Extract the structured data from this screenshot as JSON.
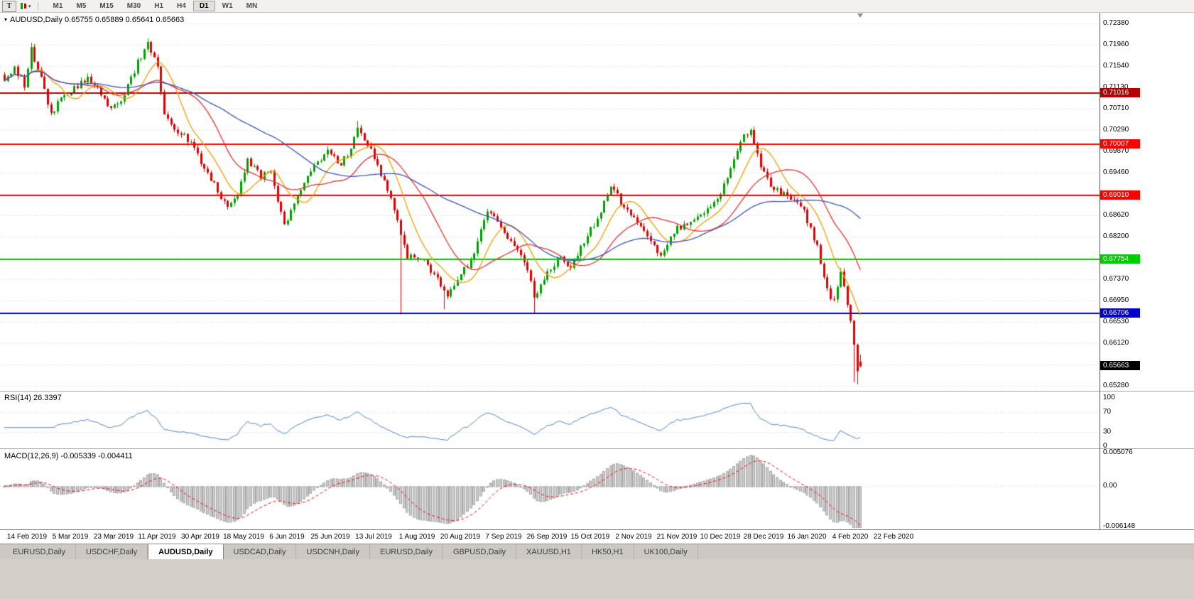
{
  "toolbar": {
    "template_button_glyph": "T",
    "dropdown_caret": "▾",
    "timeframes": [
      {
        "label": "M1",
        "active": false
      },
      {
        "label": "M5",
        "active": false
      },
      {
        "label": "M15",
        "active": false
      },
      {
        "label": "M30",
        "active": false
      },
      {
        "label": "H1",
        "active": false
      },
      {
        "label": "H4",
        "active": false
      },
      {
        "label": "D1",
        "active": true
      },
      {
        "label": "W1",
        "active": false
      },
      {
        "label": "MN",
        "active": false
      }
    ]
  },
  "chart": {
    "collapse_marker": "▾",
    "title": "AUDUSD,Daily 0.65755 0.65889 0.65641 0.65663",
    "price_axis": [
      "0.72380",
      "0.71960",
      "0.71540",
      "0.71130",
      "0.70710",
      "0.70290",
      "0.69870",
      "0.69460",
      "0.69040",
      "0.68620",
      "0.68200",
      "0.67790",
      "0.67370",
      "0.66950",
      "0.66530",
      "0.66120",
      "0.65700",
      "0.65280"
    ],
    "hlines": [
      {
        "label": "0.71016",
        "value": 0.71016,
        "color": "#b30000"
      },
      {
        "label": "0.70007",
        "value": 0.70007,
        "color": "#ff0000"
      },
      {
        "label": "0.69010",
        "value": 0.6901,
        "color": "#ff0000"
      },
      {
        "label": "0.67754",
        "value": 0.67754,
        "color": "#00cc00"
      },
      {
        "label": "0.66706",
        "value": 0.66706,
        "color": "#0000cc"
      }
    ],
    "current_price": {
      "label": "0.65663",
      "value": 0.65663,
      "color": "#000000"
    },
    "date_axis": [
      "14 Feb 2019",
      "5 Mar 2019",
      "23 Mar 2019",
      "11 Apr 2019",
      "30 Apr 2019",
      "18 May 2019",
      "6 Jun 2019",
      "25 Jun 2019",
      "13 Jul 2019",
      "1 Aug 2019",
      "20 Aug 2019",
      "7 Sep 2019",
      "26 Sep 2019",
      "15 Oct 2019",
      "2 Nov 2019",
      "21 Nov 2019",
      "10 Dec 2019",
      "28 Dec 2019",
      "16 Jan 2020",
      "4 Feb 2020",
      "22 Feb 2020"
    ]
  },
  "rsi": {
    "label": "RSI(14) 26.3397",
    "levels": [
      "100",
      "70",
      "30",
      "0"
    ]
  },
  "macd": {
    "label": "MACD(12,26,9) -0.005339 -0.004411",
    "levels": [
      "0.005076",
      "0.00",
      "-0.006148"
    ]
  },
  "tabs": [
    {
      "label": "EURUSD,Daily",
      "active": false
    },
    {
      "label": "USDCHF,Daily",
      "active": false
    },
    {
      "label": "AUDUSD,Daily",
      "active": true
    },
    {
      "label": "USDCAD,Daily",
      "active": false
    },
    {
      "label": "USDCNH,Daily",
      "active": false
    },
    {
      "label": "EURUSD,Daily",
      "active": false
    },
    {
      "label": "GBPUSD,Daily",
      "active": false
    },
    {
      "label": "XAUUSD,H1",
      "active": false
    },
    {
      "label": "HK50,H1",
      "active": false
    },
    {
      "label": "UK100,Daily",
      "active": false
    }
  ],
  "chart_data": {
    "type": "candlestick",
    "symbol": "AUDUSD",
    "timeframe": "Daily",
    "last_bar": {
      "open": 0.65755,
      "high": 0.65889,
      "low": 0.65641,
      "close": 0.65663
    },
    "bar_count": 258,
    "price_range": [
      0.6528,
      0.7238
    ],
    "x_range": [
      "14 Feb 2019",
      "22 Feb 2020"
    ],
    "colors": {
      "up": "#00a000",
      "down": "#e00000"
    },
    "close_keypoints": [
      [
        0,
        0.7128
      ],
      [
        3,
        0.7152
      ],
      [
        6,
        0.7118
      ],
      [
        8,
        0.7186
      ],
      [
        10,
        0.7152
      ],
      [
        14,
        0.7058
      ],
      [
        17,
        0.7092
      ],
      [
        21,
        0.7112
      ],
      [
        25,
        0.7128
      ],
      [
        28,
        0.7108
      ],
      [
        32,
        0.7068
      ],
      [
        36,
        0.7098
      ],
      [
        40,
        0.7162
      ],
      [
        43,
        0.7198
      ],
      [
        46,
        0.715
      ],
      [
        48,
        0.7062
      ],
      [
        51,
        0.7032
      ],
      [
        54,
        0.7018
      ],
      [
        57,
        0.6992
      ],
      [
        62,
        0.6932
      ],
      [
        67,
        0.6878
      ],
      [
        70,
        0.6906
      ],
      [
        73,
        0.6972
      ],
      [
        77,
        0.6938
      ],
      [
        80,
        0.6948
      ],
      [
        82,
        0.6892
      ],
      [
        84,
        0.684
      ],
      [
        88,
        0.6896
      ],
      [
        92,
        0.6948
      ],
      [
        97,
        0.6988
      ],
      [
        101,
        0.6962
      ],
      [
        104,
        0.6992
      ],
      [
        106,
        0.7036
      ],
      [
        110,
        0.6988
      ],
      [
        114,
        0.6928
      ],
      [
        118,
        0.6852
      ],
      [
        121,
        0.6782
      ],
      [
        126,
        0.6772
      ],
      [
        130,
        0.6738
      ],
      [
        133,
        0.6702
      ],
      [
        137,
        0.6748
      ],
      [
        140,
        0.6772
      ],
      [
        145,
        0.6872
      ],
      [
        149,
        0.6842
      ],
      [
        153,
        0.68
      ],
      [
        157,
        0.6758
      ],
      [
        159,
        0.6702
      ],
      [
        163,
        0.6752
      ],
      [
        167,
        0.6782
      ],
      [
        170,
        0.6758
      ],
      [
        174,
        0.6812
      ],
      [
        178,
        0.6855
      ],
      [
        182,
        0.6922
      ],
      [
        185,
        0.6888
      ],
      [
        189,
        0.6855
      ],
      [
        194,
        0.6808
      ],
      [
        197,
        0.6782
      ],
      [
        201,
        0.6832
      ],
      [
        205,
        0.6848
      ],
      [
        210,
        0.6868
      ],
      [
        214,
        0.6892
      ],
      [
        218,
        0.6952
      ],
      [
        222,
        0.7018
      ],
      [
        224,
        0.7032
      ],
      [
        227,
        0.6958
      ],
      [
        231,
        0.6912
      ],
      [
        235,
        0.6902
      ],
      [
        240,
        0.6868
      ],
      [
        244,
        0.68
      ],
      [
        247,
        0.6716
      ],
      [
        249,
        0.6692
      ],
      [
        251,
        0.6748
      ],
      [
        254,
        0.6658
      ],
      [
        256,
        0.656
      ],
      [
        257,
        0.65663
      ]
    ],
    "forced_lows": [
      [
        119,
        0.6668
      ],
      [
        132,
        0.6678
      ],
      [
        159,
        0.6671
      ],
      [
        255,
        0.6535
      ],
      [
        256,
        0.6531
      ]
    ],
    "forced_highs": [
      [
        8,
        0.72
      ],
      [
        43,
        0.7206
      ],
      [
        106,
        0.7047
      ],
      [
        224,
        0.7033
      ]
    ],
    "horizontal_lines": [
      0.71016,
      0.70007,
      0.6901,
      0.67754,
      0.66706
    ],
    "moving_averages": [
      {
        "period": 10,
        "color": "#f0a000"
      },
      {
        "period": 22,
        "color": "#e83030"
      },
      {
        "period": 50,
        "color": "#3b54c4"
      }
    ],
    "rsi": {
      "period": 14,
      "current": 26.3397,
      "dotted_levels": [
        70,
        30
      ],
      "color": "#4a86c8"
    },
    "macd": {
      "fast": 12,
      "slow": 26,
      "signal_period": 9,
      "current_macd": -0.005339,
      "current_signal": -0.004411,
      "axis_max": 0.005076,
      "axis_min": -0.006148,
      "histogram_fill": "#cdcdcd",
      "histogram_stroke": "#a8a8a8",
      "signal_color": "#ff0000"
    }
  }
}
